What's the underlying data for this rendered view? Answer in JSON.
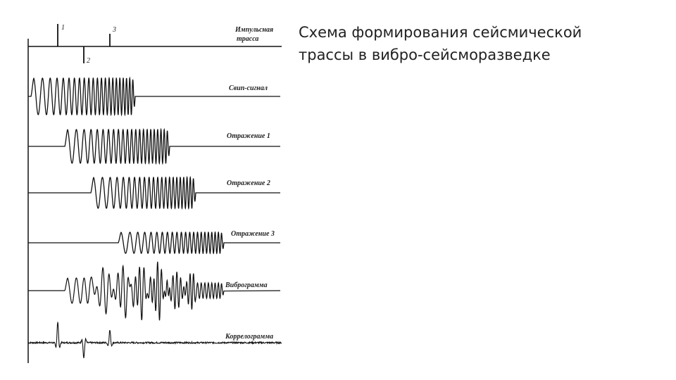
{
  "title": {
    "line1": "Схема формирования сейсмической",
    "line2": "трассы в вибро-сейсморазведке"
  },
  "impulse_trace": {
    "label_line1": "Импульсная",
    "label_line2": "трасса",
    "markers": [
      "1",
      "2",
      "3"
    ]
  },
  "traces": [
    {
      "key": "sweep",
      "label": "Свип-сигнал"
    },
    {
      "key": "reflection1",
      "label": "Отражение 1"
    },
    {
      "key": "reflection2",
      "label": "Отражение 2"
    },
    {
      "key": "reflection3",
      "label": "Отражение 3"
    },
    {
      "key": "vibrogram",
      "label": "Виброграмма"
    },
    {
      "key": "correlogram",
      "label": "Коррелограмма"
    }
  ],
  "colors": {
    "ink": "#111111",
    "text": "#222222",
    "background": "#ffffff"
  }
}
